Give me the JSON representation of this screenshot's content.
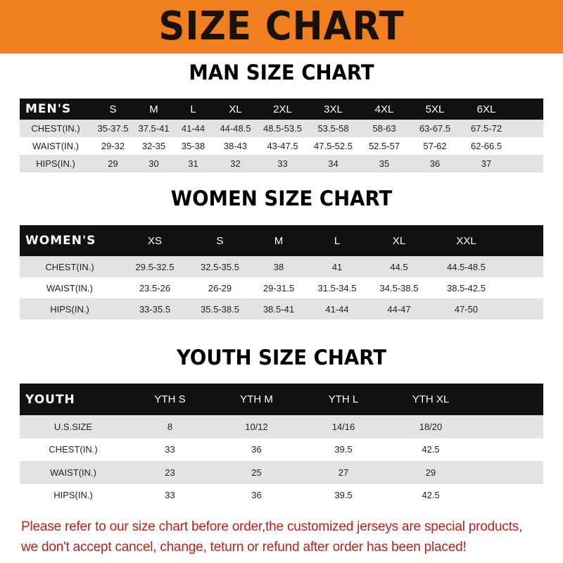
{
  "banner": {
    "title": "SIZE CHART",
    "color": "#f0801f"
  },
  "men": {
    "title": "MAN SIZE CHART",
    "label": "MEN'S",
    "sizes": [
      "S",
      "M",
      "L",
      "XL",
      "2XL",
      "3XL",
      "4XL",
      "5XL",
      "6XL"
    ],
    "rows": [
      {
        "label": "CHEST(IN.)",
        "values": [
          "35-37.5",
          "37.5-41",
          "41-44",
          "44-48.5",
          "48.5-53.5",
          "53.5-58",
          "58-63",
          "63-67.5",
          "67.5-72"
        ]
      },
      {
        "label": "WAIST(IN.)",
        "values": [
          "29-32",
          "32-35",
          "35-38",
          "38-43",
          "43-47.5",
          "47.5-52.5",
          "52.5-57",
          "57-62",
          "62-66.5"
        ]
      },
      {
        "label": "HIPS(IN.)",
        "values": [
          "29",
          "30",
          "31",
          "32",
          "33",
          "34",
          "35",
          "36",
          "37"
        ]
      }
    ]
  },
  "women": {
    "title": "WOMEN SIZE CHART",
    "label": "WOMEN'S",
    "sizes": [
      "XS",
      "S",
      "M",
      "L",
      "XL",
      "XXL"
    ],
    "rows": [
      {
        "label": "CHEST(IN.)",
        "values": [
          "29.5-32.5",
          "32.5-35.5",
          "38",
          "41",
          "44.5",
          "44.5-48.5"
        ]
      },
      {
        "label": "WAIST(IN.)",
        "values": [
          "23.5-26",
          "26-29",
          "29-31.5",
          "31.5-34.5",
          "34.5-38.5",
          "38.5-42.5"
        ]
      },
      {
        "label": "HIPS(IN.)",
        "values": [
          "33-35.5",
          "35.5-38.5",
          "38.5-41",
          "41-44",
          "44-47",
          "47-50"
        ]
      }
    ]
  },
  "youth": {
    "title": "YOUTH SIZE CHART",
    "label": "YOUTH",
    "sizes": [
      "YTH S",
      "YTH M",
      "YTH L",
      "YTH XL"
    ],
    "rows": [
      {
        "label": "U.S.SIZE",
        "values": [
          "8",
          "10/12",
          "14/16",
          "18/20"
        ]
      },
      {
        "label": "CHEST(IN.)",
        "values": [
          "33",
          "36",
          "39.5",
          "42.5"
        ]
      },
      {
        "label": "WAIST(IN.)",
        "values": [
          "23",
          "25",
          "27",
          "29"
        ]
      },
      {
        "label": "HIPS(IN.)",
        "values": [
          "33",
          "36",
          "39.5",
          "42.5"
        ]
      }
    ]
  },
  "note": {
    "line1": "Please refer to our size chart before order,the customized jerseys are special products,",
    "line2": "we don't accept cancel, change, teturn or refund after order has been placed!",
    "color": "#b5231f"
  }
}
